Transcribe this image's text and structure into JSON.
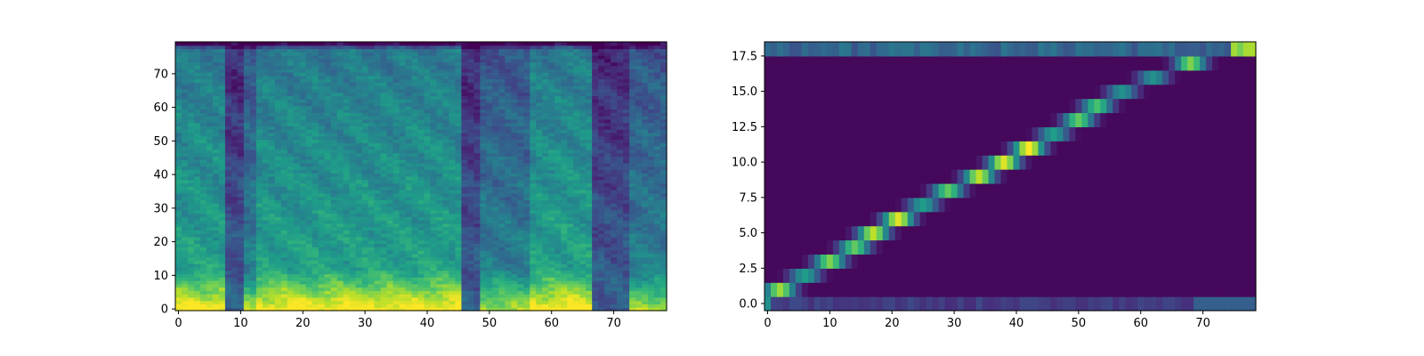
{
  "chart_data": [
    {
      "type": "heatmap",
      "description": "mel-spectrogram style image",
      "x_range": [
        -0.5,
        78.5
      ],
      "y_range": [
        -0.5,
        79.5
      ],
      "xticks": [
        0,
        10,
        20,
        30,
        40,
        50,
        60,
        70
      ],
      "yticks": [
        0,
        10,
        20,
        30,
        40,
        50,
        60,
        70
      ],
      "xtick_labels": [
        "0",
        "10",
        "20",
        "30",
        "40",
        "50",
        "60",
        "70"
      ],
      "ytick_labels": [
        "0",
        "10",
        "20",
        "30",
        "40",
        "50",
        "60",
        "70"
      ],
      "n_cols": 79,
      "n_rows": 80,
      "colormap": "viridis",
      "title": "",
      "xlabel": "",
      "ylabel": "",
      "grid": false,
      "features": {
        "low_band_energy_columns": [
          [
            0,
            8
          ],
          [
            13,
            46
          ],
          [
            57,
            67
          ]
        ],
        "silent_columns": [
          [
            8,
            10
          ],
          [
            46,
            48
          ],
          [
            67,
            69
          ],
          [
            70,
            72
          ]
        ],
        "strong_low_freq_rows": [
          0,
          12
        ]
      }
    },
    {
      "type": "heatmap",
      "description": "alignment matrix",
      "x_range": [
        -0.5,
        78.5
      ],
      "y_range": [
        -0.5,
        18.5
      ],
      "xticks": [
        0,
        10,
        20,
        30,
        40,
        50,
        60,
        70
      ],
      "yticks": [
        0.0,
        2.5,
        5.0,
        7.5,
        10.0,
        12.5,
        15.0,
        17.5
      ],
      "xtick_labels": [
        "0",
        "10",
        "20",
        "30",
        "40",
        "50",
        "60",
        "70"
      ],
      "ytick_labels": [
        "0.0",
        "2.5",
        "5.0",
        "7.5",
        "10.0",
        "12.5",
        "15.0",
        "17.5"
      ],
      "n_cols": 79,
      "n_rows": 19,
      "colormap": "viridis",
      "title": "",
      "xlabel": "",
      "ylabel": "",
      "grid": false,
      "alignment_path": [
        {
          "row": 1,
          "center_x": 2,
          "peak": 0.85
        },
        {
          "row": 2,
          "center_x": 6,
          "peak": 0.55
        },
        {
          "row": 3,
          "center_x": 10,
          "peak": 0.8
        },
        {
          "row": 4,
          "center_x": 14,
          "peak": 0.75
        },
        {
          "row": 5,
          "center_x": 17,
          "peak": 0.9
        },
        {
          "row": 6,
          "center_x": 21,
          "peak": 0.95
        },
        {
          "row": 7,
          "center_x": 25,
          "peak": 0.55
        },
        {
          "row": 8,
          "center_x": 29,
          "peak": 0.75
        },
        {
          "row": 9,
          "center_x": 34,
          "peak": 0.9
        },
        {
          "row": 10,
          "center_x": 38,
          "peak": 0.95
        },
        {
          "row": 11,
          "center_x": 42,
          "peak": 1.0
        },
        {
          "row": 12,
          "center_x": 46,
          "peak": 0.55
        },
        {
          "row": 13,
          "center_x": 50,
          "peak": 0.75
        },
        {
          "row": 14,
          "center_x": 53,
          "peak": 0.7
        },
        {
          "row": 15,
          "center_x": 57,
          "peak": 0.5
        },
        {
          "row": 16,
          "center_x": 62,
          "peak": 0.5
        },
        {
          "row": 17,
          "center_x": 68,
          "peak": 0.8
        },
        {
          "row": 18,
          "center_x": 78,
          "peak": 0.9
        }
      ],
      "background_rows": {
        "row_0_end_level": 0.3,
        "row_18_level": 0.25
      }
    }
  ]
}
